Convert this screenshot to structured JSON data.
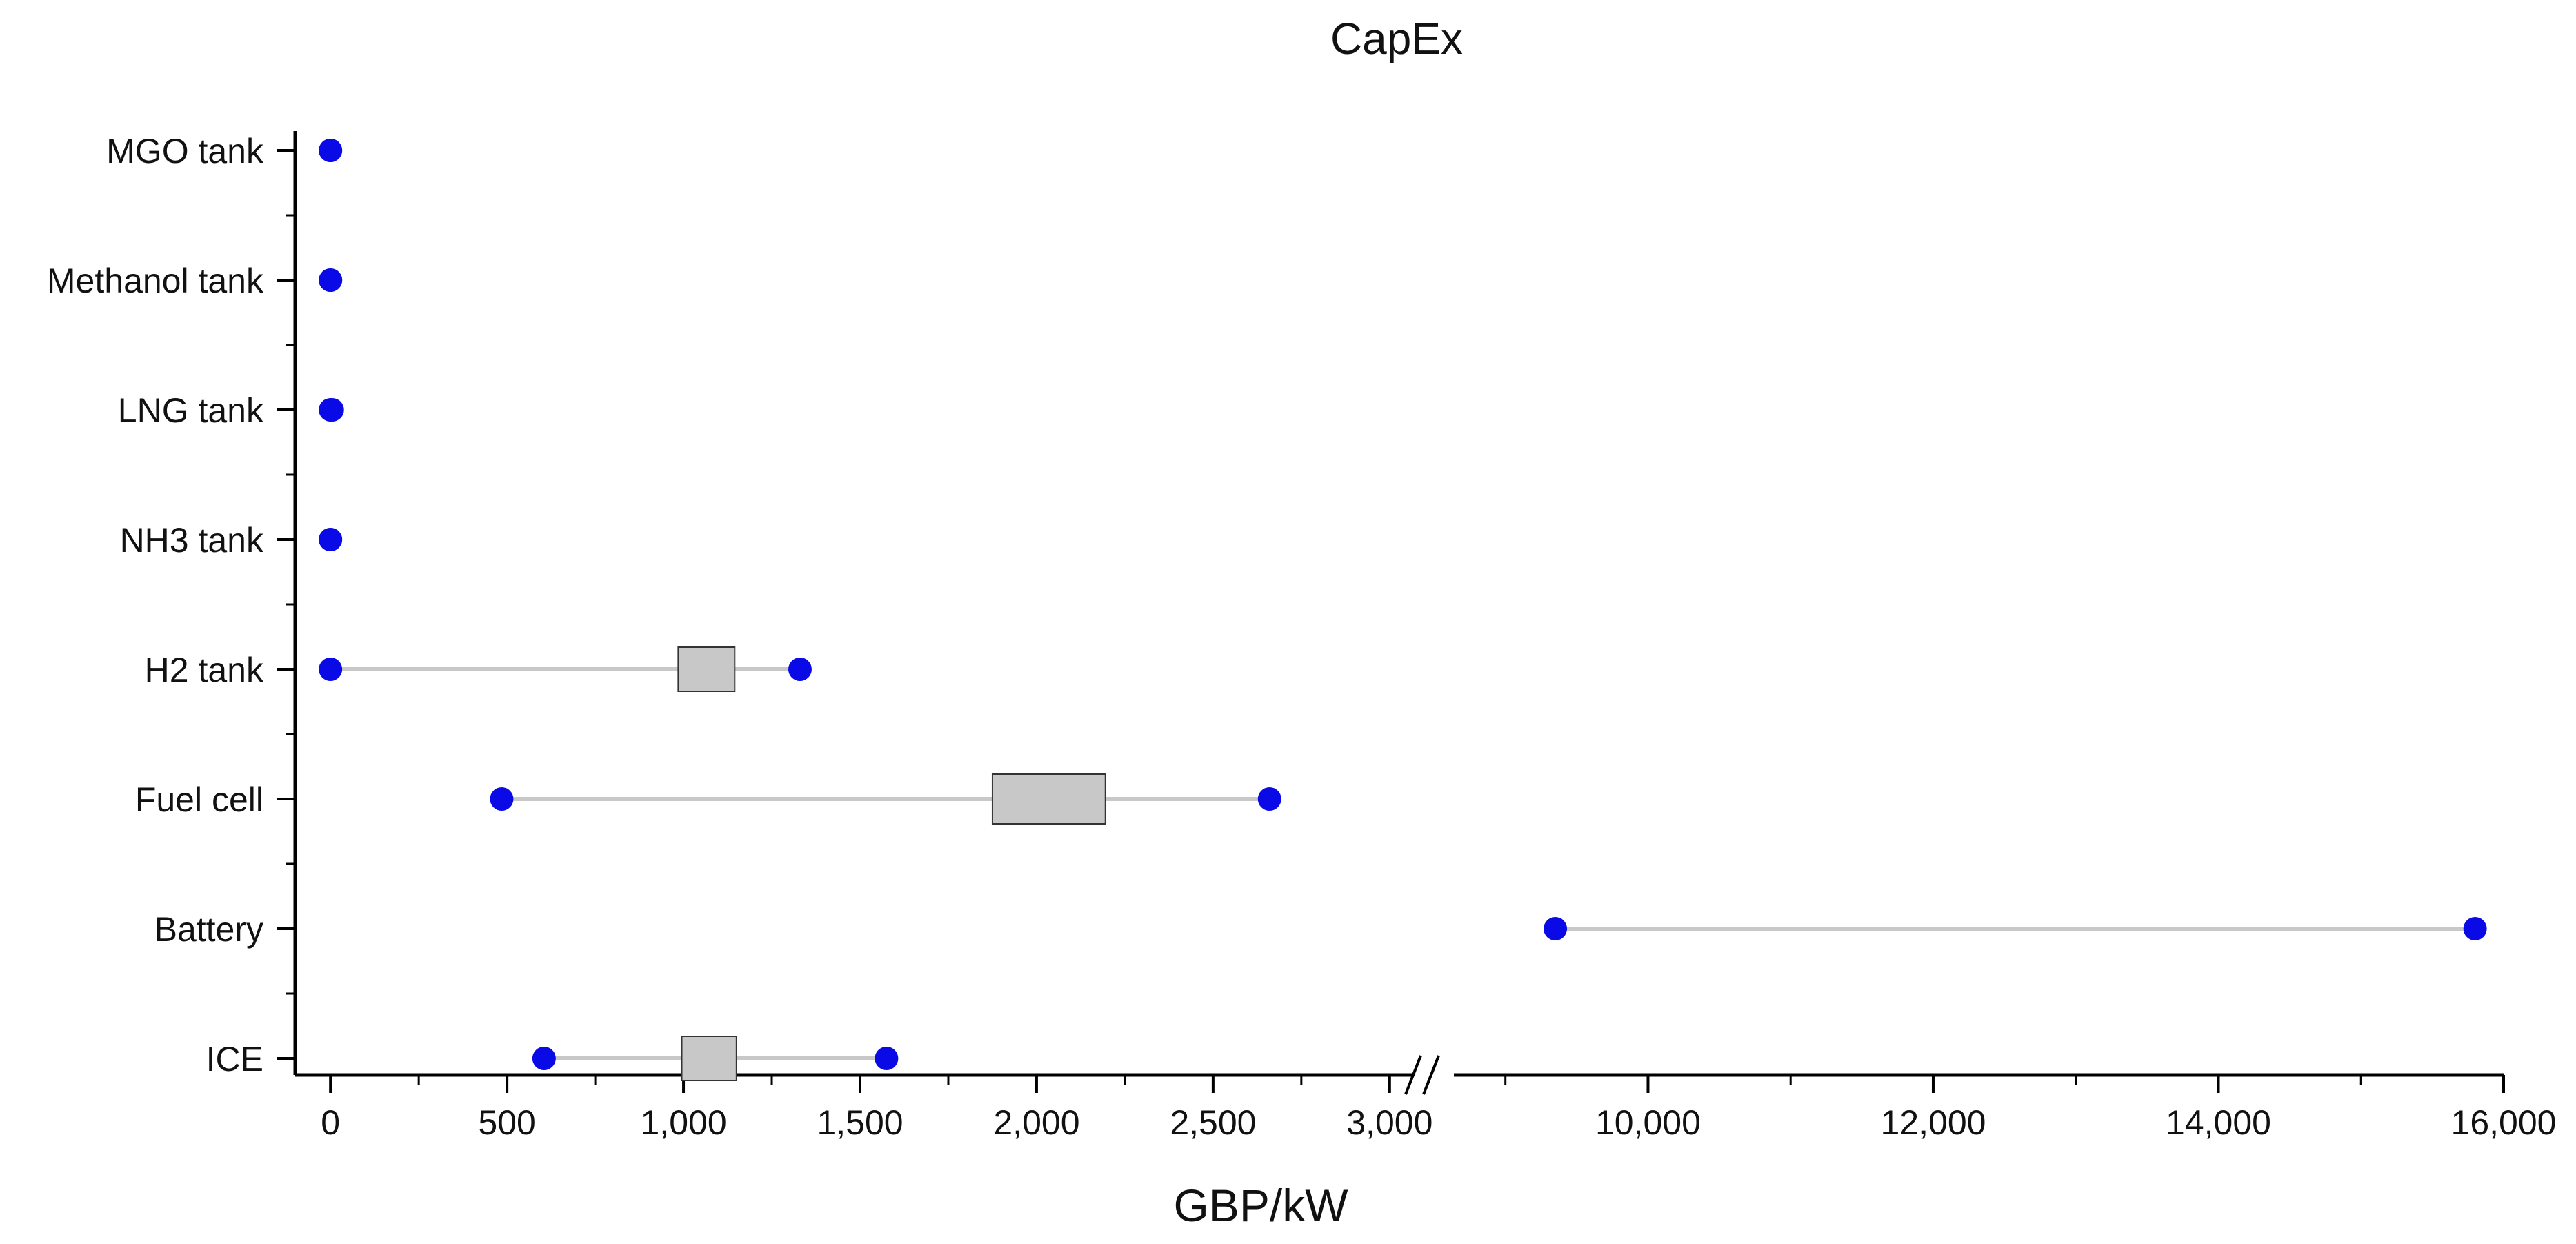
{
  "chart_data": {
    "type": "range_dot_box",
    "title": "CapEx",
    "xlabel": "GBP/kW",
    "ylabel": "",
    "x_axis": {
      "broken": true,
      "segment_1": {
        "range": [
          -100,
          3100
        ],
        "ticks": [
          0,
          500,
          1000,
          1500,
          2000,
          2500,
          3000
        ]
      },
      "segment_2": {
        "range": [
          8600,
          16000
        ],
        "ticks": [
          10000,
          12000,
          14000,
          16000
        ]
      },
      "tick_labels": [
        "0",
        "500",
        "1,000",
        "1,500",
        "2,000",
        "2,500",
        "3,000",
        "10,000",
        "12,000",
        "14,000",
        "16,000"
      ]
    },
    "categories": [
      "MGO tank",
      "Methanol tank",
      "LNG tank",
      "NH3 tank",
      "H2 tank",
      "Fuel cell",
      "Battery",
      "ICE"
    ],
    "series": [
      {
        "category": "MGO tank",
        "min": 0,
        "max": 0,
        "box": null
      },
      {
        "category": "Methanol tank",
        "min": 0,
        "max": 0,
        "box": null
      },
      {
        "category": "LNG tank",
        "min": 0,
        "max": 5,
        "box": null
      },
      {
        "category": "NH3 tank",
        "min": 0,
        "max": 0,
        "box": null
      },
      {
        "category": "H2 tank",
        "min": 0,
        "max": 1330,
        "box": [
          985,
          1145
        ]
      },
      {
        "category": "Fuel cell",
        "min": 485,
        "max": 2660,
        "box": [
          1875,
          2195
        ]
      },
      {
        "category": "Battery",
        "min": 9350,
        "max": 15800,
        "box": null
      },
      {
        "category": "ICE",
        "min": 605,
        "max": 1575,
        "box": [
          995,
          1150
        ]
      }
    ],
    "colors": {
      "dot": "#0a0ae6",
      "range_line": "#c8c8c8",
      "box_fill": "#c8c8c8",
      "box_stroke": "#333333",
      "axis": "#000000"
    },
    "grid": false,
    "legend": "none"
  }
}
